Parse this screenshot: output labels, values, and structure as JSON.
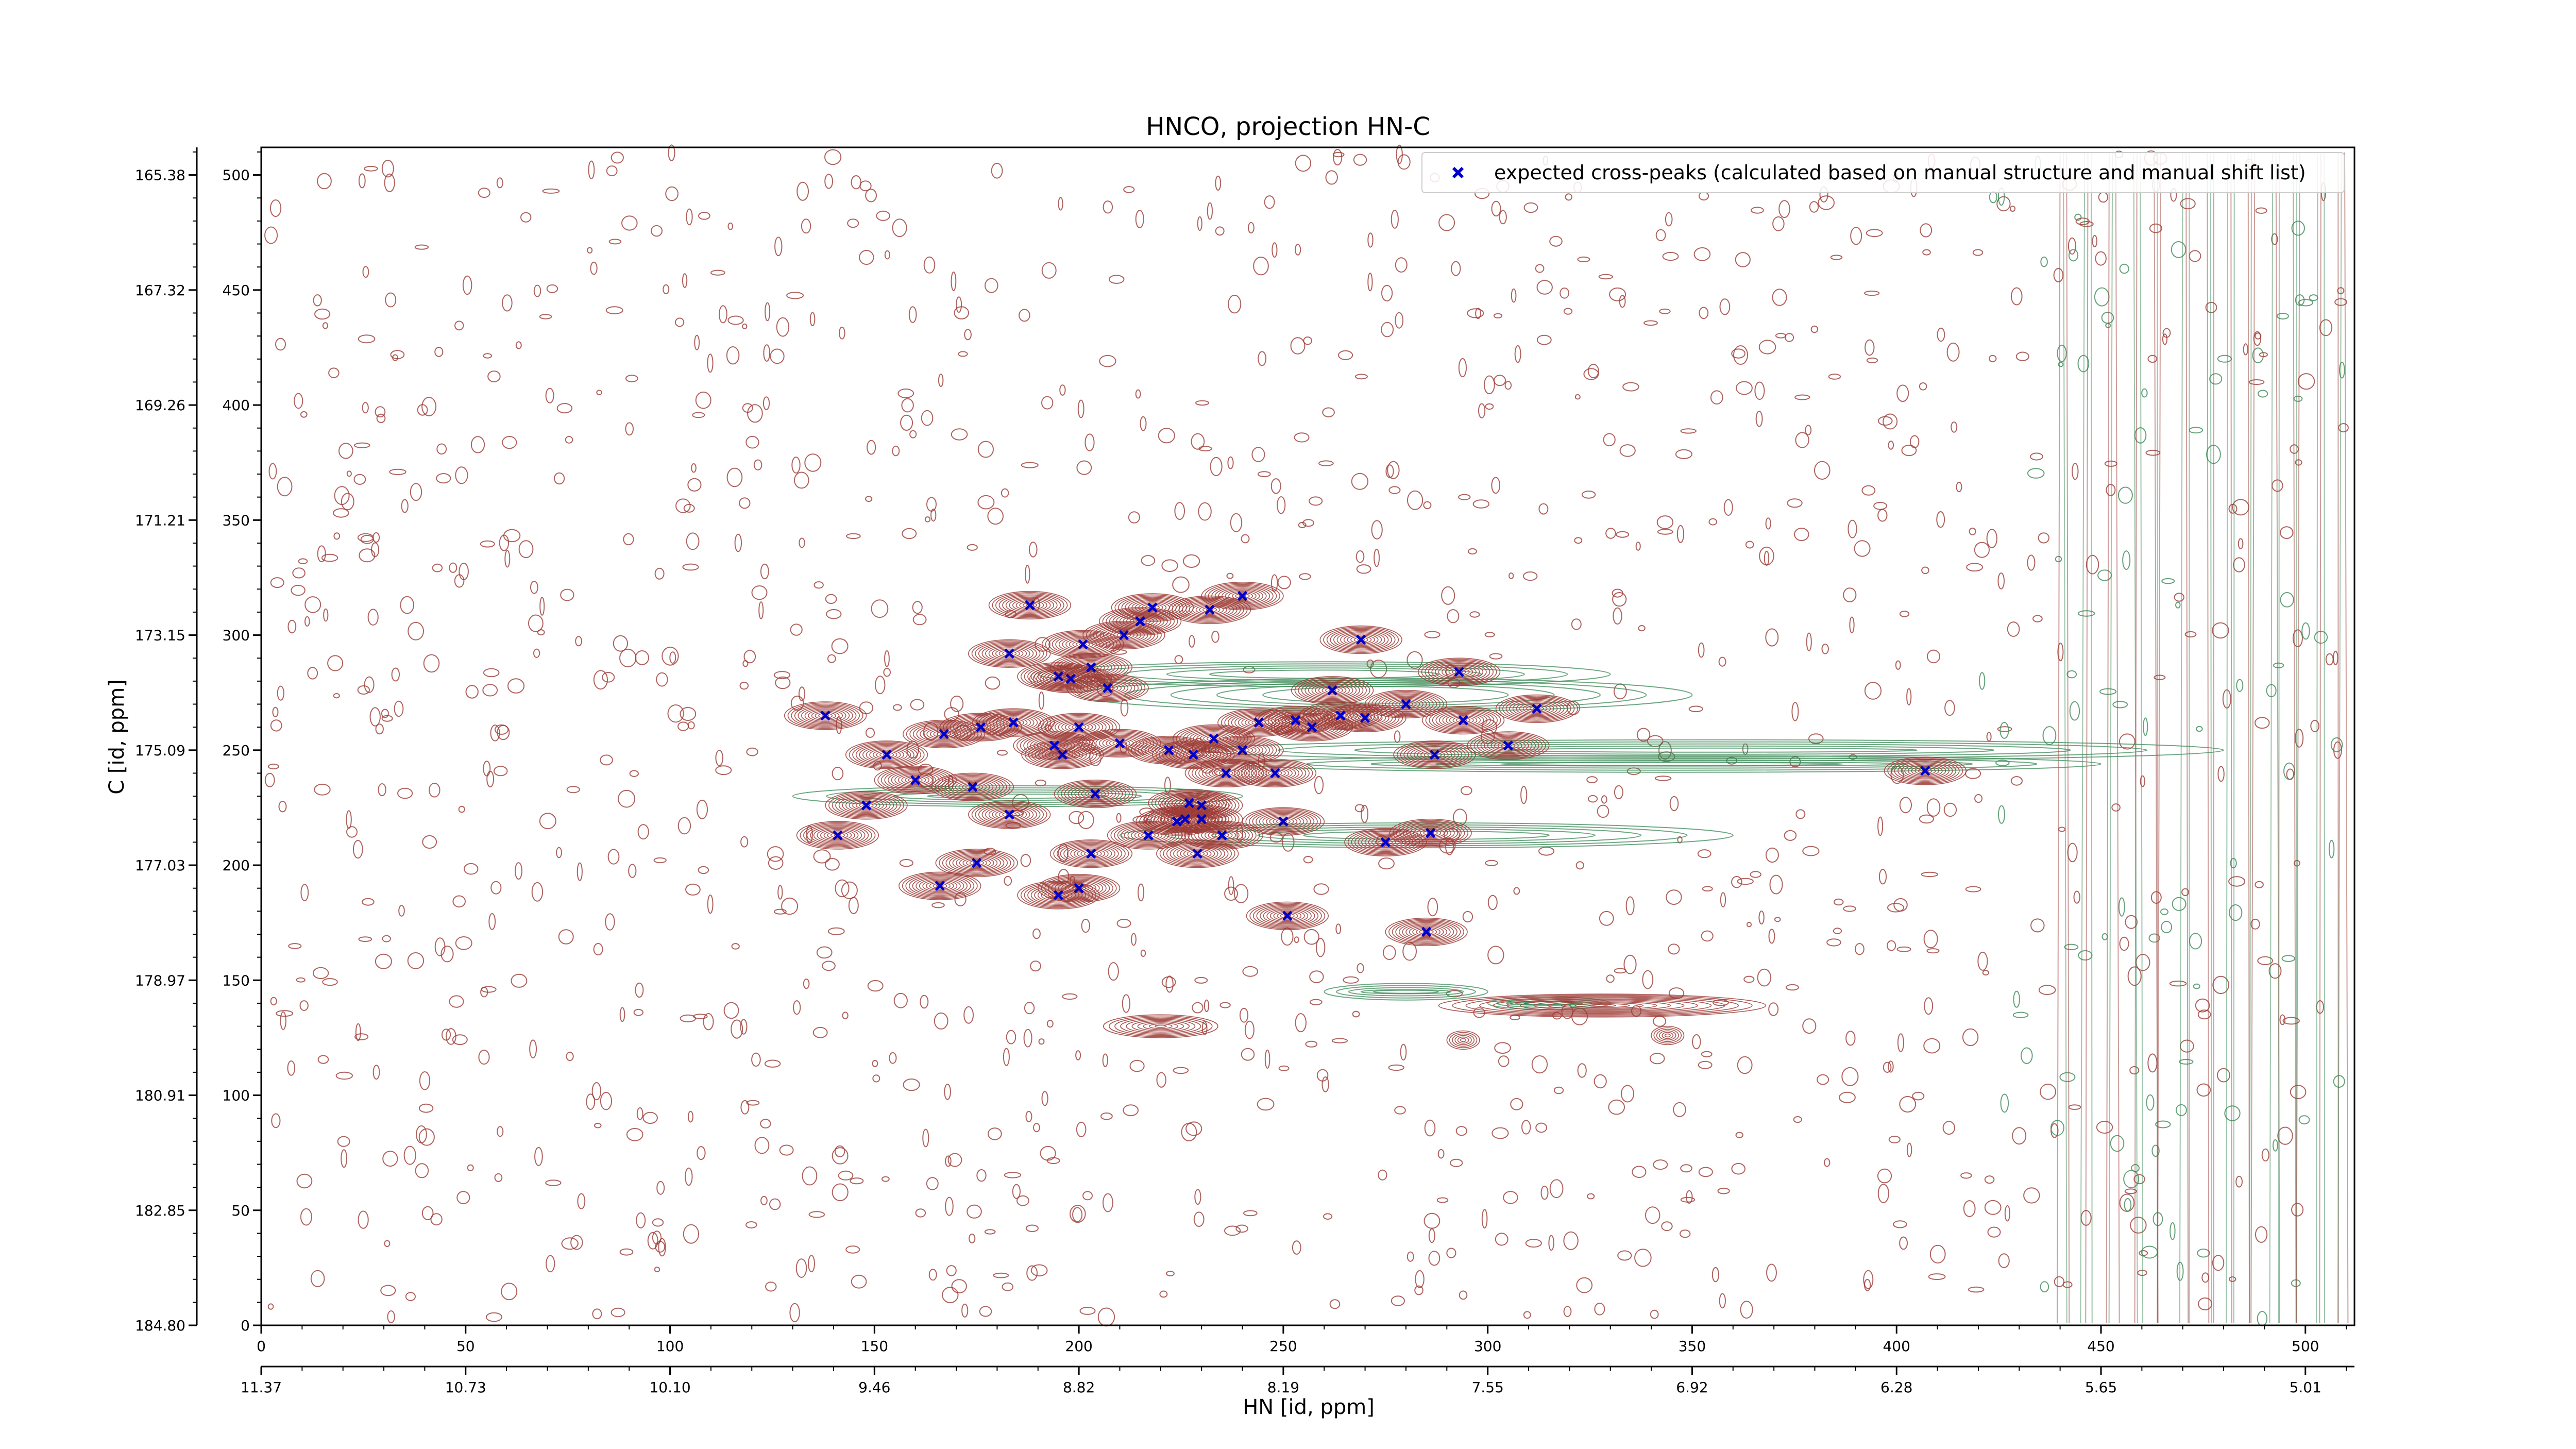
{
  "chart_data": {
    "type": "scatter",
    "title": "HNCO, projection HN-C",
    "xlabel": "HN [id, ppm]",
    "ylabel": "C [id, ppm]",
    "xlim": [
      0,
      512
    ],
    "ylim": [
      0,
      512
    ],
    "x_ticks": [
      0,
      50,
      100,
      150,
      200,
      250,
      300,
      350,
      400,
      450,
      500
    ],
    "y_ticks": [
      0,
      50,
      100,
      150,
      200,
      250,
      300,
      350,
      400,
      450,
      500
    ],
    "x_ppm_labels": [
      "11.37",
      "10.73",
      "10.10",
      "9.46",
      "8.82",
      "8.19",
      "7.55",
      "6.92",
      "6.28",
      "5.65",
      "5.01"
    ],
    "y_ppm_labels": [
      "184.80",
      "182.85",
      "180.91",
      "178.97",
      "177.03",
      "175.09",
      "173.15",
      "171.21",
      "169.26",
      "167.32",
      "165.38"
    ],
    "grid": false,
    "legend_position": "top-right",
    "colors": {
      "positive_contour": "#9c3b35",
      "negative_contour": "#3d8a58",
      "marker": "#0000cc"
    },
    "series": [
      {
        "name": "expected cross-peaks (calculated based on manual structure and manual shift list)",
        "marker": "x",
        "points": [
          [
            188,
            313
          ],
          [
            218,
            312
          ],
          [
            232,
            311
          ],
          [
            240,
            317
          ],
          [
            183,
            292
          ],
          [
            215,
            306
          ],
          [
            211,
            300
          ],
          [
            201,
            296
          ],
          [
            269,
            298
          ],
          [
            203,
            286
          ],
          [
            198,
            281
          ],
          [
            195,
            282
          ],
          [
            207,
            277
          ],
          [
            262,
            276
          ],
          [
            293,
            284
          ],
          [
            138,
            265
          ],
          [
            184,
            262
          ],
          [
            176,
            260
          ],
          [
            167,
            257
          ],
          [
            153,
            248
          ],
          [
            194,
            252
          ],
          [
            200,
            260
          ],
          [
            196,
            248
          ],
          [
            210,
            253
          ],
          [
            222,
            250
          ],
          [
            228,
            248
          ],
          [
            233,
            255
          ],
          [
            244,
            262
          ],
          [
            253,
            263
          ],
          [
            257,
            260
          ],
          [
            264,
            265
          ],
          [
            280,
            270
          ],
          [
            294,
            263
          ],
          [
            270,
            264
          ],
          [
            240,
            250
          ],
          [
            236,
            240
          ],
          [
            248,
            240
          ],
          [
            287,
            248
          ],
          [
            305,
            252
          ],
          [
            312,
            268
          ],
          [
            160,
            237
          ],
          [
            174,
            234
          ],
          [
            204,
            231
          ],
          [
            227,
            227
          ],
          [
            230,
            226
          ],
          [
            148,
            226
          ],
          [
            183,
            222
          ],
          [
            226,
            220
          ],
          [
            230,
            220
          ],
          [
            224,
            219
          ],
          [
            250,
            219
          ],
          [
            141,
            213
          ],
          [
            217,
            213
          ],
          [
            235,
            213
          ],
          [
            286,
            214
          ],
          [
            275,
            210
          ],
          [
            203,
            205
          ],
          [
            229,
            205
          ],
          [
            175,
            201
          ],
          [
            166,
            191
          ],
          [
            200,
            190
          ],
          [
            195,
            187
          ],
          [
            251,
            178
          ],
          [
            285,
            171
          ],
          [
            407,
            241
          ]
        ]
      }
    ]
  }
}
